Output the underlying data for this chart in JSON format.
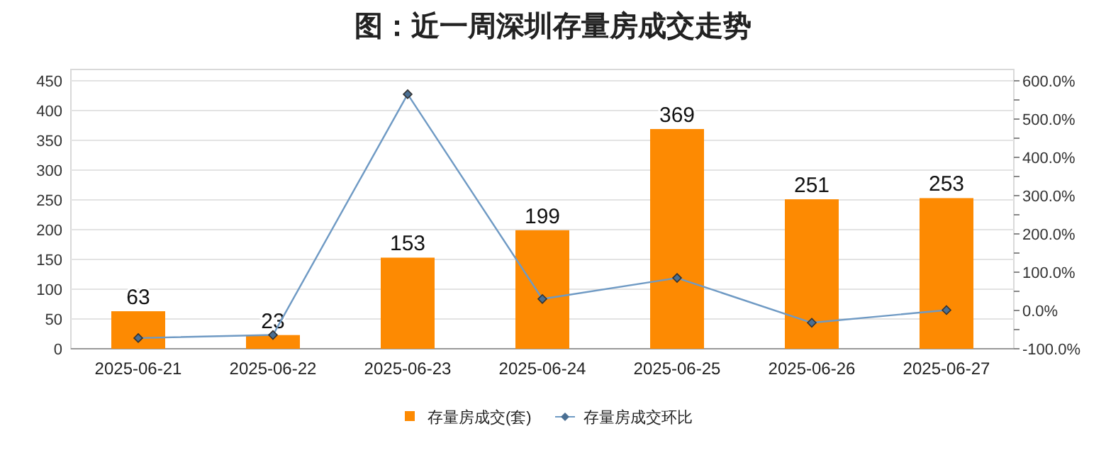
{
  "chart_data": {
    "type": "bar",
    "title": "图：近一周深圳存量房成交走势",
    "categories": [
      "2025-06-21",
      "2025-06-22",
      "2025-06-23",
      "2025-06-24",
      "2025-06-25",
      "2025-06-26",
      "2025-06-27"
    ],
    "series": [
      {
        "name": "存量房成交(套)",
        "color": "#fd8a02",
        "values": [
          63,
          23,
          153,
          199,
          369,
          251,
          253
        ],
        "value_labels": [
          "63",
          "23",
          "153",
          "199",
          "369",
          "251",
          "253"
        ]
      },
      {
        "name": "存量房成交环比",
        "type": "line",
        "axis": "y2",
        "color": "#6f9ac4",
        "marker": "diamond",
        "values": [
          -72,
          -64,
          565,
          30,
          85,
          -32,
          1
        ]
      }
    ],
    "ylim": [
      0,
      450
    ],
    "yticks": [
      0,
      50,
      100,
      150,
      200,
      250,
      300,
      350,
      400,
      450
    ],
    "y2lim": [
      -100,
      600
    ],
    "y2ticks": [
      {
        "value": -100,
        "label": "-100.0%"
      },
      {
        "value": -50,
        "label": null
      },
      {
        "value": 0,
        "label": "0.0%"
      },
      {
        "value": 50,
        "label": null
      },
      {
        "value": 100,
        "label": "100.0%"
      },
      {
        "value": 150,
        "label": null
      },
      {
        "value": 200,
        "label": "200.0%"
      },
      {
        "value": 250,
        "label": null
      },
      {
        "value": 300,
        "label": "300.0%"
      },
      {
        "value": 350,
        "label": null
      },
      {
        "value": 400,
        "label": "400.0%"
      },
      {
        "value": 450,
        "label": null
      },
      {
        "value": 500,
        "label": "500.0%"
      },
      {
        "value": 550,
        "label": null
      },
      {
        "value": 600,
        "label": "600.0%"
      }
    ],
    "grid": "y",
    "legend": "bottom"
  }
}
